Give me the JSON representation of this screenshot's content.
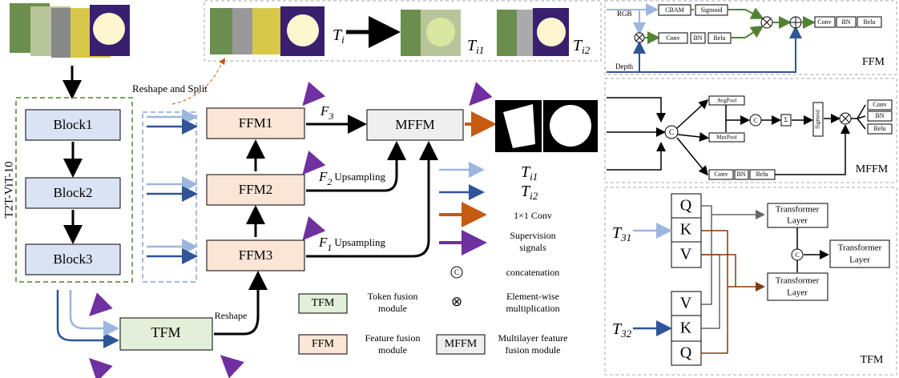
{
  "encoder": {
    "label": "T2T-ViT-10",
    "blocks": [
      "Block1",
      "Block2",
      "Block3"
    ]
  },
  "reshape_split": "Reshape and Split",
  "token_split": {
    "input": {
      "base": "T",
      "sub": "i"
    },
    "outputs": [
      {
        "base": "T",
        "sub": "i1"
      },
      {
        "base": "T",
        "sub": "i2"
      }
    ]
  },
  "ffm_modules": [
    "FFM1",
    "FFM2",
    "FFM3"
  ],
  "mffm": "MFFM",
  "tfm": "TFM",
  "reshape": "Reshape",
  "features": [
    {
      "base": "F",
      "sub": "3"
    },
    {
      "base": "F",
      "sub": "2",
      "note": "Upsampling"
    },
    {
      "base": "F",
      "sub": "1",
      "note": "Upsampling"
    }
  ],
  "legend": {
    "arrows": [
      {
        "base": "T",
        "sub": "i1"
      },
      {
        "base": "T",
        "sub": "i2"
      },
      "1×1 Conv",
      [
        "Supervision",
        "signals"
      ]
    ],
    "concat": {
      "symbol": "C",
      "text": "concatenation"
    },
    "multiply": {
      "symbol": "⊗",
      "text": [
        "Element-wise",
        "multiplication"
      ]
    },
    "modules": [
      {
        "box": "TFM",
        "text": [
          "Token fusion",
          "module"
        ]
      },
      {
        "box": "FFM",
        "text": [
          "Feature fusion",
          "module"
        ]
      },
      {
        "box": "MFFM",
        "text": [
          "Multilayer feature",
          "fusion module"
        ]
      }
    ]
  },
  "ffm_panel": {
    "title": "FFM",
    "rgb": "RGB",
    "depth": "Depth",
    "cbam": "CBAM",
    "sigmoid": "Sigmoid",
    "row2": [
      "Conv",
      "BN",
      "Relu"
    ],
    "out": [
      "Conv",
      "BN",
      "Relu"
    ]
  },
  "mffm_panel": {
    "title": "MFFM",
    "avgpool": "AvgPool",
    "maxpool": "MaxPool",
    "concat": "C",
    "sum": "Σ",
    "sigmoid": "Sigmoid",
    "out": [
      "Conv",
      "BN",
      "Relu"
    ],
    "bottom": [
      "Conv",
      "BN",
      "Relu"
    ]
  },
  "tfm_panel": {
    "title": "TFM",
    "top": [
      "Q",
      "K",
      "V"
    ],
    "bottom": [
      "V",
      "K",
      "Q"
    ],
    "inputs": [
      {
        "base": "T",
        "sub": "31"
      },
      {
        "base": "T",
        "sub": "32"
      }
    ],
    "layers": [
      "Transformer",
      "Layer"
    ],
    "concat": "C"
  }
}
